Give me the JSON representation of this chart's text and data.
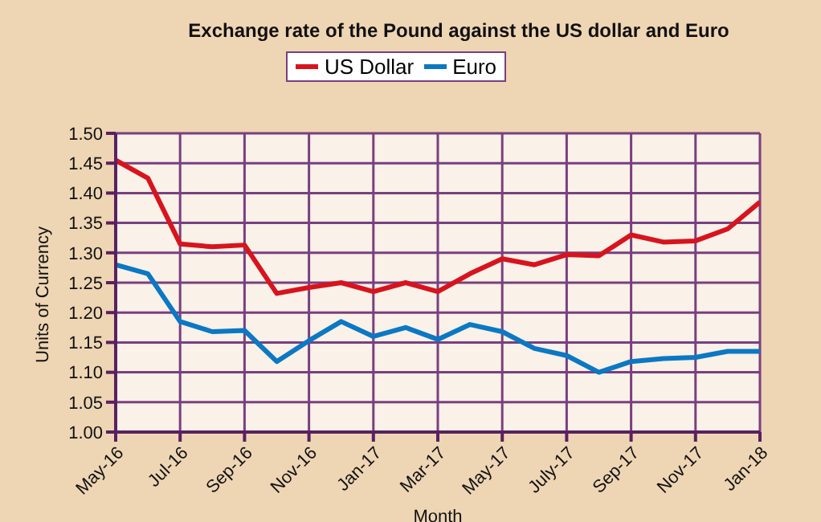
{
  "chart_data": {
    "type": "line",
    "title": "Exchange rate of the Pound against the US dollar and Euro",
    "xlabel": "Month",
    "ylabel": "Units of Currency",
    "categories": [
      "May-16",
      null,
      "Jul-16",
      null,
      "Sep-16",
      null,
      "Nov-16",
      null,
      "Jan-17",
      null,
      "Mar-17",
      null,
      "May-17",
      null,
      "July-17",
      null,
      "Sep-17",
      null,
      "Nov-17",
      null,
      "Jan-18"
    ],
    "series": [
      {
        "name": "US Dollar",
        "color": "#d7141e",
        "values": [
          1.455,
          1.425,
          1.315,
          1.31,
          1.313,
          1.232,
          1.242,
          1.25,
          1.235,
          1.25,
          1.235,
          1.265,
          1.29,
          1.28,
          1.297,
          1.295,
          1.33,
          1.318,
          1.32,
          1.34,
          1.385
        ]
      },
      {
        "name": "Euro",
        "color": "#0a78c3",
        "values": [
          1.28,
          1.265,
          1.185,
          1.168,
          1.17,
          1.118,
          1.153,
          1.185,
          1.16,
          1.175,
          1.155,
          1.18,
          1.168,
          1.14,
          1.128,
          1.1,
          1.118,
          1.123,
          1.125,
          1.135,
          1.135
        ]
      }
    ],
    "ylim": [
      1.0,
      1.5
    ],
    "yticks": [
      {
        "value": 1.0,
        "label": "1.00"
      },
      {
        "value": 1.05,
        "label": "1.05"
      },
      {
        "value": 1.1,
        "label": "1.10"
      },
      {
        "value": 1.15,
        "label": "1.15"
      },
      {
        "value": 1.2,
        "label": "1.20"
      },
      {
        "value": 1.25,
        "label": "1.25"
      },
      {
        "value": 1.3,
        "label": "1.30"
      },
      {
        "value": 1.35,
        "label": "1.35"
      },
      {
        "value": 1.4,
        "label": "1.40"
      },
      {
        "value": 1.45,
        "label": "1.45"
      },
      {
        "value": 1.5,
        "label": "1.50"
      }
    ],
    "grid": true,
    "legend": "top",
    "marker": "none",
    "line_style": "solid"
  }
}
